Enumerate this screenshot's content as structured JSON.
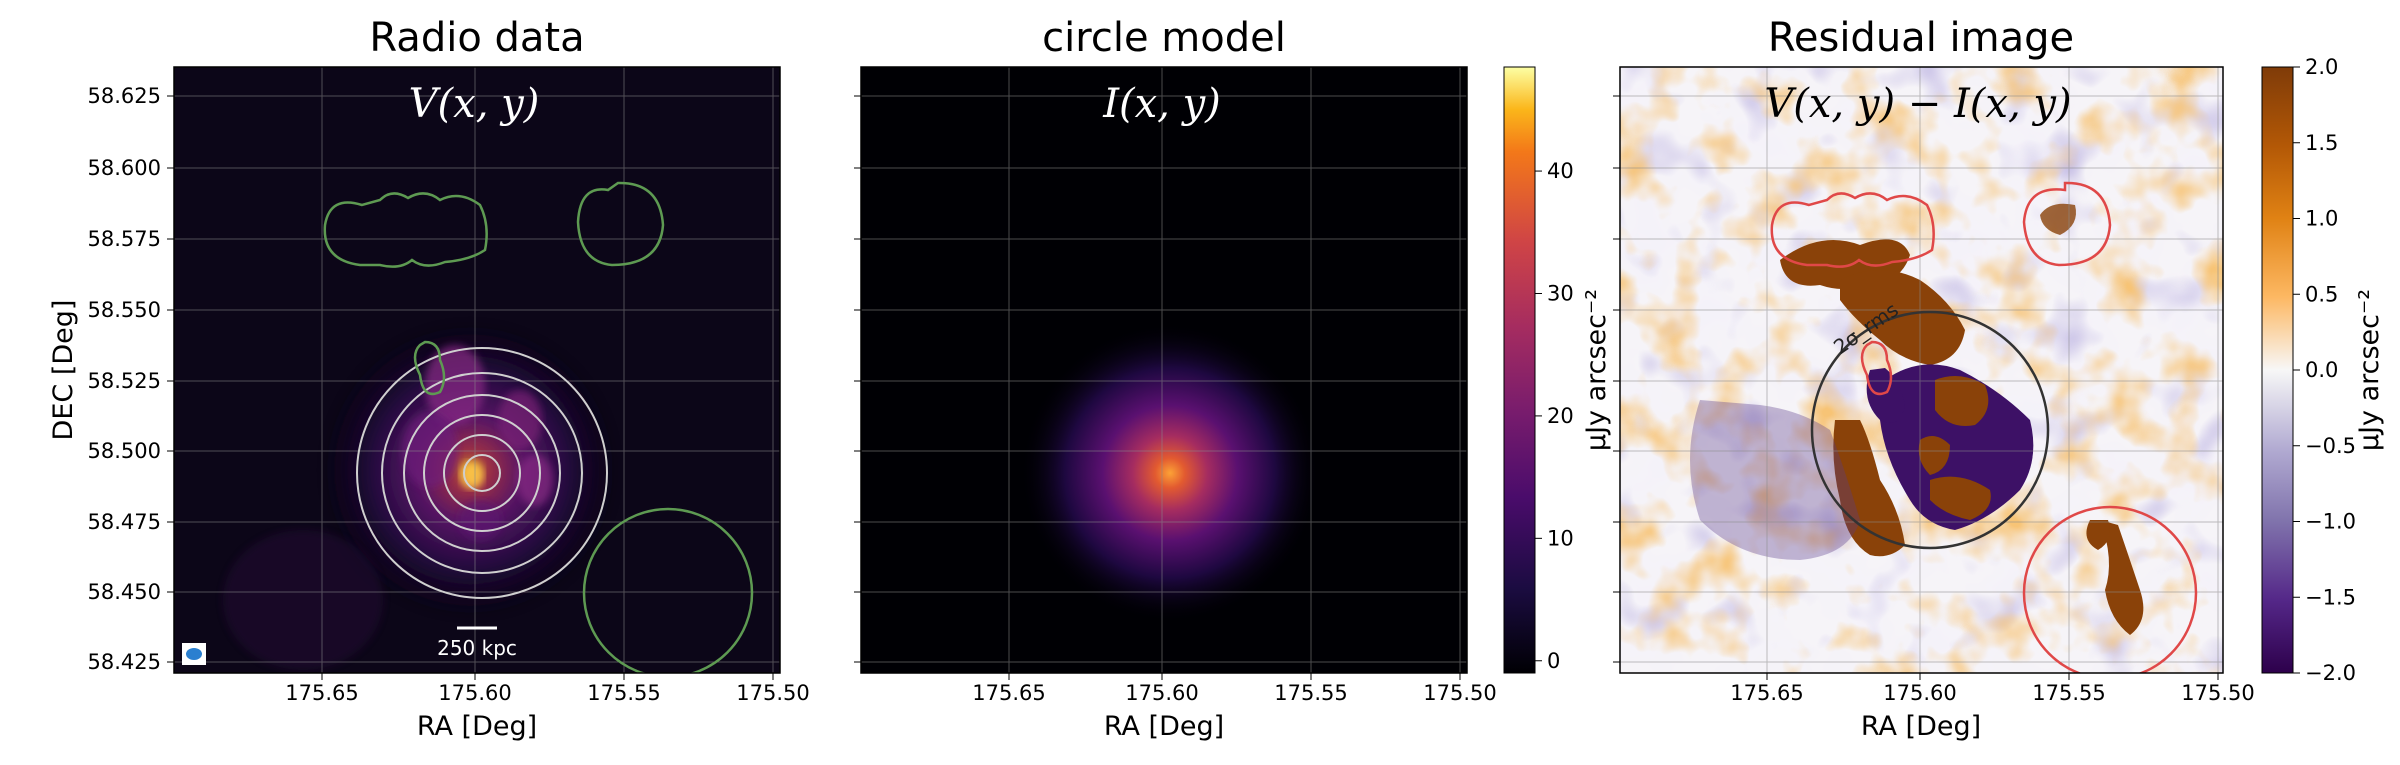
{
  "chart_data": [
    {
      "type": "heatmap",
      "title": "Radio data",
      "annotation": "V(x, y)",
      "xlabel": "RA [Deg]",
      "ylabel": "DEC [Deg]",
      "xticks": [
        "175.65",
        "175.60",
        "175.55",
        "175.50"
      ],
      "yticks": [
        "58.625",
        "58.600",
        "58.575",
        "58.550",
        "58.525",
        "58.500",
        "58.475",
        "58.450",
        "58.425"
      ],
      "scalebar_label": "250 kpc",
      "colormap": "inferno",
      "grid": true
    },
    {
      "type": "heatmap",
      "title": "circle model",
      "annotation": "I(x, y)",
      "xlabel": "RA [Deg]",
      "xticks": [
        "175.65",
        "175.60",
        "175.55",
        "175.50"
      ],
      "colormap": "inferno",
      "colorbar": {
        "ticks": [
          "0",
          "10",
          "20",
          "30",
          "40"
        ],
        "tick_values": [
          0,
          10,
          20,
          30,
          40
        ],
        "range": [
          -1,
          48.5
        ],
        "label": "μJy arcsec⁻²"
      },
      "grid": true
    },
    {
      "type": "heatmap",
      "title": "Residual image",
      "annotation": "V(x, y) − I(x, y)",
      "xlabel": "RA [Deg]",
      "xticks": [
        "175.65",
        "175.60",
        "175.55",
        "175.50"
      ],
      "contour_label": "2σ_rms",
      "colormap": "PuOr_r",
      "colorbar": {
        "ticks": [
          "2.0",
          "1.5",
          "1.0",
          "0.5",
          "0.0",
          "−0.5",
          "−1.0",
          "−1.5",
          "−2.0"
        ],
        "tick_values": [
          2.0,
          1.5,
          1.0,
          0.5,
          0.0,
          -0.5,
          -1.0,
          -1.5,
          -2.0
        ],
        "range": [
          -2.0,
          2.0
        ],
        "label": "μJy arcsec⁻²"
      },
      "grid": true
    }
  ],
  "colors": {
    "mask_contour": "#5e9a52",
    "residual_mask_contour": "#e04848",
    "model_circles": "#c8c8c8",
    "residual_circle": "#333333",
    "grid": "#b0b0b0"
  }
}
